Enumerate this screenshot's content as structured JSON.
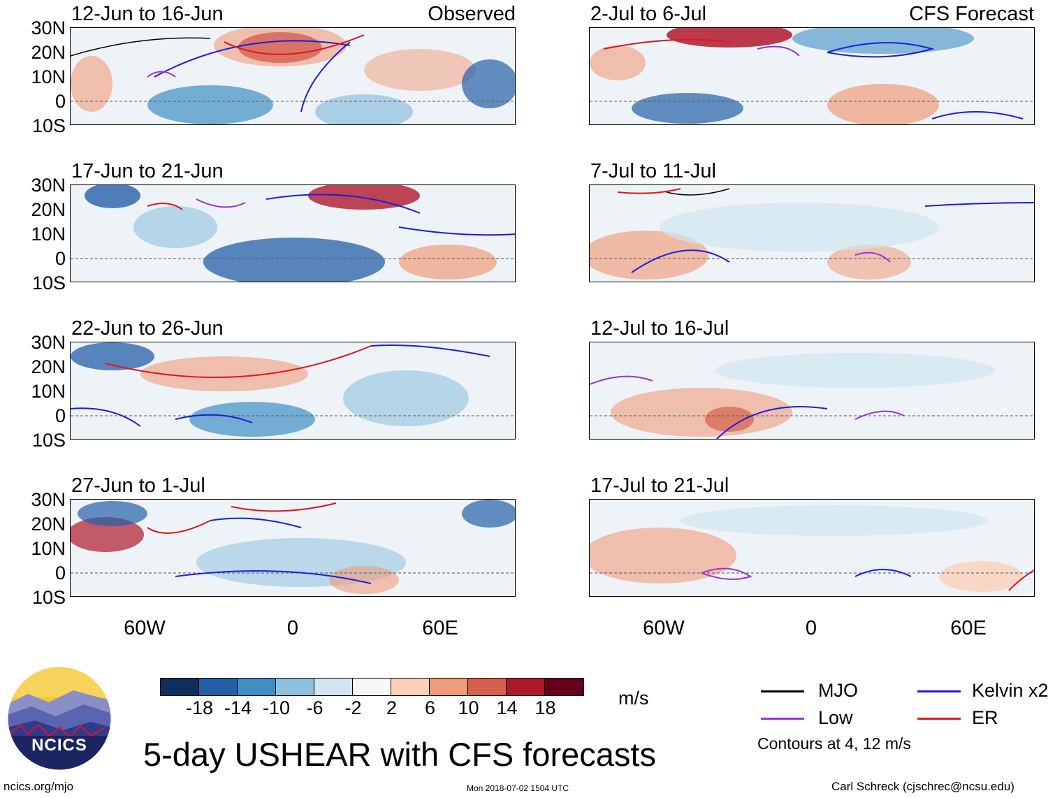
{
  "title": "5-day USHEAR with CFS forecasts",
  "left_column_label": "Observed",
  "right_column_label": "CFS Forecast",
  "lat_labels": [
    "30N",
    "20N",
    "10N",
    "0",
    "10S"
  ],
  "lon_labels": [
    "60W",
    "0",
    "60E"
  ],
  "panels_left": [
    {
      "period": "12-Jun to 16-Jun"
    },
    {
      "period": "17-Jun to 21-Jun"
    },
    {
      "period": "22-Jun to 26-Jun"
    },
    {
      "period": "27-Jun to 1-Jul"
    }
  ],
  "panels_right": [
    {
      "period": "2-Jul to 6-Jul"
    },
    {
      "period": "7-Jul to 11-Jul"
    },
    {
      "period": "12-Jul to 16-Jul"
    },
    {
      "period": "17-Jul to 21-Jul"
    }
  ],
  "colorbar": {
    "ticks": [
      "-18",
      "-14",
      "-10",
      "-6",
      "-2",
      "2",
      "6",
      "10",
      "14",
      "18"
    ],
    "colors": [
      "#0d2f5e",
      "#2460a7",
      "#3f8fc5",
      "#8fc1de",
      "#d2e5f0",
      "#f7f7f7",
      "#fbd0b9",
      "#f09b7a",
      "#d6604d",
      "#b0182c",
      "#67001f"
    ],
    "unit": "m/s"
  },
  "legend": {
    "items": [
      {
        "label": "MJO",
        "color": "#000000"
      },
      {
        "label": "Kelvin x2",
        "color": "#1c1ce0"
      },
      {
        "label": "Low",
        "color": "#9a33d6"
      },
      {
        "label": "ER",
        "color": "#e0151a"
      }
    ],
    "contours_note": "Contours at 4, 12 m/s"
  },
  "logo_text": "NCICS",
  "footer": {
    "site": "ncics.org/mjo",
    "timestamp": "Mon 2018-07-02 1504 UTC",
    "author": "Carl Schreck (cjschrec@ncsu.edu)"
  }
}
